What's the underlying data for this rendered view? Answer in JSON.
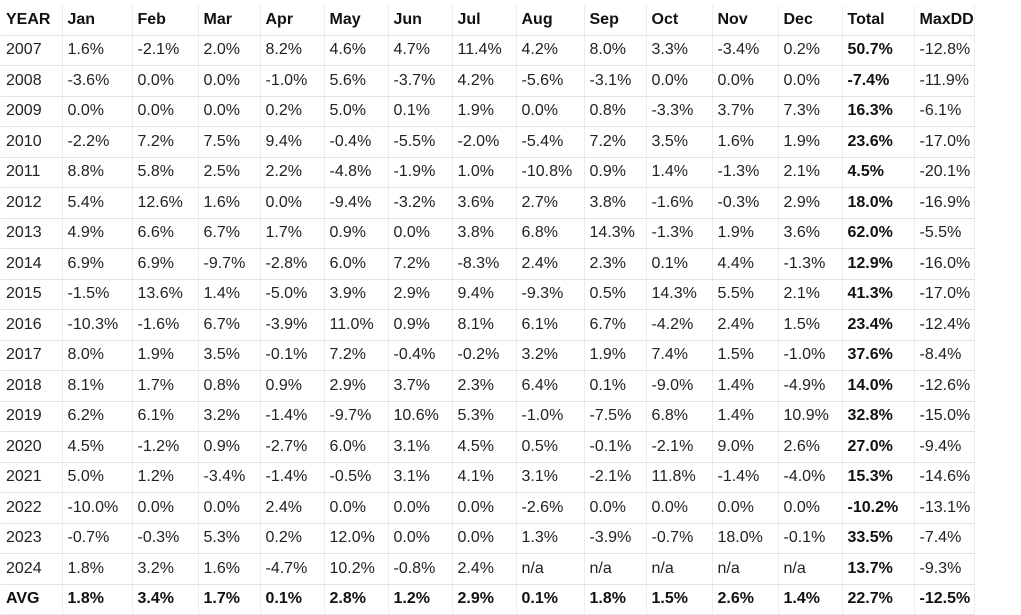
{
  "headers": [
    "YEAR",
    "Jan",
    "Feb",
    "Mar",
    "Apr",
    "May",
    "Jun",
    "Jul",
    "Aug",
    "Sep",
    "Oct",
    "Nov",
    "Dec",
    "Total",
    "MaxDD"
  ],
  "rows": [
    [
      "2007",
      "1.6%",
      "-2.1%",
      "2.0%",
      "8.2%",
      "4.6%",
      "4.7%",
      "11.4%",
      "4.2%",
      "8.0%",
      "3.3%",
      "-3.4%",
      "0.2%",
      "50.7%",
      "-12.8%"
    ],
    [
      "2008",
      "-3.6%",
      "0.0%",
      "0.0%",
      "-1.0%",
      "5.6%",
      "-3.7%",
      "4.2%",
      "-5.6%",
      "-3.1%",
      "0.0%",
      "0.0%",
      "0.0%",
      "-7.4%",
      "-11.9%"
    ],
    [
      "2009",
      "0.0%",
      "0.0%",
      "0.0%",
      "0.2%",
      "5.0%",
      "0.1%",
      "1.9%",
      "0.0%",
      "0.8%",
      "-3.3%",
      "3.7%",
      "7.3%",
      "16.3%",
      "-6.1%"
    ],
    [
      "2010",
      "-2.2%",
      "7.2%",
      "7.5%",
      "9.4%",
      "-0.4%",
      "-5.5%",
      "-2.0%",
      "-5.4%",
      "7.2%",
      "3.5%",
      "1.6%",
      "1.9%",
      "23.6%",
      "-17.0%"
    ],
    [
      "2011",
      "8.8%",
      "5.8%",
      "2.5%",
      "2.2%",
      "-4.8%",
      "-1.9%",
      "1.0%",
      "-10.8%",
      "0.9%",
      "1.4%",
      "-1.3%",
      "2.1%",
      "4.5%",
      "-20.1%"
    ],
    [
      "2012",
      "5.4%",
      "12.6%",
      "1.6%",
      "0.0%",
      "-9.4%",
      "-3.2%",
      "3.6%",
      "2.7%",
      "3.8%",
      "-1.6%",
      "-0.3%",
      "2.9%",
      "18.0%",
      "-16.9%"
    ],
    [
      "2013",
      "4.9%",
      "6.6%",
      "6.7%",
      "1.7%",
      "0.9%",
      "0.0%",
      "3.8%",
      "6.8%",
      "14.3%",
      "-1.3%",
      "1.9%",
      "3.6%",
      "62.0%",
      "-5.5%"
    ],
    [
      "2014",
      "6.9%",
      "6.9%",
      "-9.7%",
      "-2.8%",
      "6.0%",
      "7.2%",
      "-8.3%",
      "2.4%",
      "2.3%",
      "0.1%",
      "4.4%",
      "-1.3%",
      "12.9%",
      "-16.0%"
    ],
    [
      "2015",
      "-1.5%",
      "13.6%",
      "1.4%",
      "-5.0%",
      "3.9%",
      "2.9%",
      "9.4%",
      "-9.3%",
      "0.5%",
      "14.3%",
      "5.5%",
      "2.1%",
      "41.3%",
      "-17.0%"
    ],
    [
      "2016",
      "-10.3%",
      "-1.6%",
      "6.7%",
      "-3.9%",
      "11.0%",
      "0.9%",
      "8.1%",
      "6.1%",
      "6.7%",
      "-4.2%",
      "2.4%",
      "1.5%",
      "23.4%",
      "-12.4%"
    ],
    [
      "2017",
      "8.0%",
      "1.9%",
      "3.5%",
      "-0.1%",
      "7.2%",
      "-0.4%",
      "-0.2%",
      "3.2%",
      "1.9%",
      "7.4%",
      "1.5%",
      "-1.0%",
      "37.6%",
      "-8.4%"
    ],
    [
      "2018",
      "8.1%",
      "1.7%",
      "0.8%",
      "0.9%",
      "2.9%",
      "3.7%",
      "2.3%",
      "6.4%",
      "0.1%",
      "-9.0%",
      "1.4%",
      "-4.9%",
      "14.0%",
      "-12.6%"
    ],
    [
      "2019",
      "6.2%",
      "6.1%",
      "3.2%",
      "-1.4%",
      "-9.7%",
      "10.6%",
      "5.3%",
      "-1.0%",
      "-7.5%",
      "6.8%",
      "1.4%",
      "10.9%",
      "32.8%",
      "-15.0%"
    ],
    [
      "2020",
      "4.5%",
      "-1.2%",
      "0.9%",
      "-2.7%",
      "6.0%",
      "3.1%",
      "4.5%",
      "0.5%",
      "-0.1%",
      "-2.1%",
      "9.0%",
      "2.6%",
      "27.0%",
      "-9.4%"
    ],
    [
      "2021",
      "5.0%",
      "1.2%",
      "-3.4%",
      "-1.4%",
      "-0.5%",
      "3.1%",
      "4.1%",
      "3.1%",
      "-2.1%",
      "11.8%",
      "-1.4%",
      "-4.0%",
      "15.3%",
      "-14.6%"
    ],
    [
      "2022",
      "-10.0%",
      "0.0%",
      "0.0%",
      "2.4%",
      "0.0%",
      "0.0%",
      "0.0%",
      "-2.6%",
      "0.0%",
      "0.0%",
      "0.0%",
      "0.0%",
      "-10.2%",
      "-13.1%"
    ],
    [
      "2023",
      "-0.7%",
      "-0.3%",
      "5.3%",
      "0.2%",
      "12.0%",
      "0.0%",
      "0.0%",
      "1.3%",
      "-3.9%",
      "-0.7%",
      "18.0%",
      "-0.1%",
      "33.5%",
      "-7.4%"
    ],
    [
      "2024",
      "1.8%",
      "3.2%",
      "1.6%",
      "-4.7%",
      "10.2%",
      "-0.8%",
      "2.4%",
      "n/a",
      "n/a",
      "n/a",
      "n/a",
      "n/a",
      "13.7%",
      "-9.3%"
    ]
  ],
  "avg": [
    "AVG",
    "1.8%",
    "3.4%",
    "1.7%",
    "0.1%",
    "2.8%",
    "1.2%",
    "2.9%",
    "0.1%",
    "1.8%",
    "1.5%",
    "2.6%",
    "1.4%",
    "22.7%",
    "-12.5%"
  ]
}
